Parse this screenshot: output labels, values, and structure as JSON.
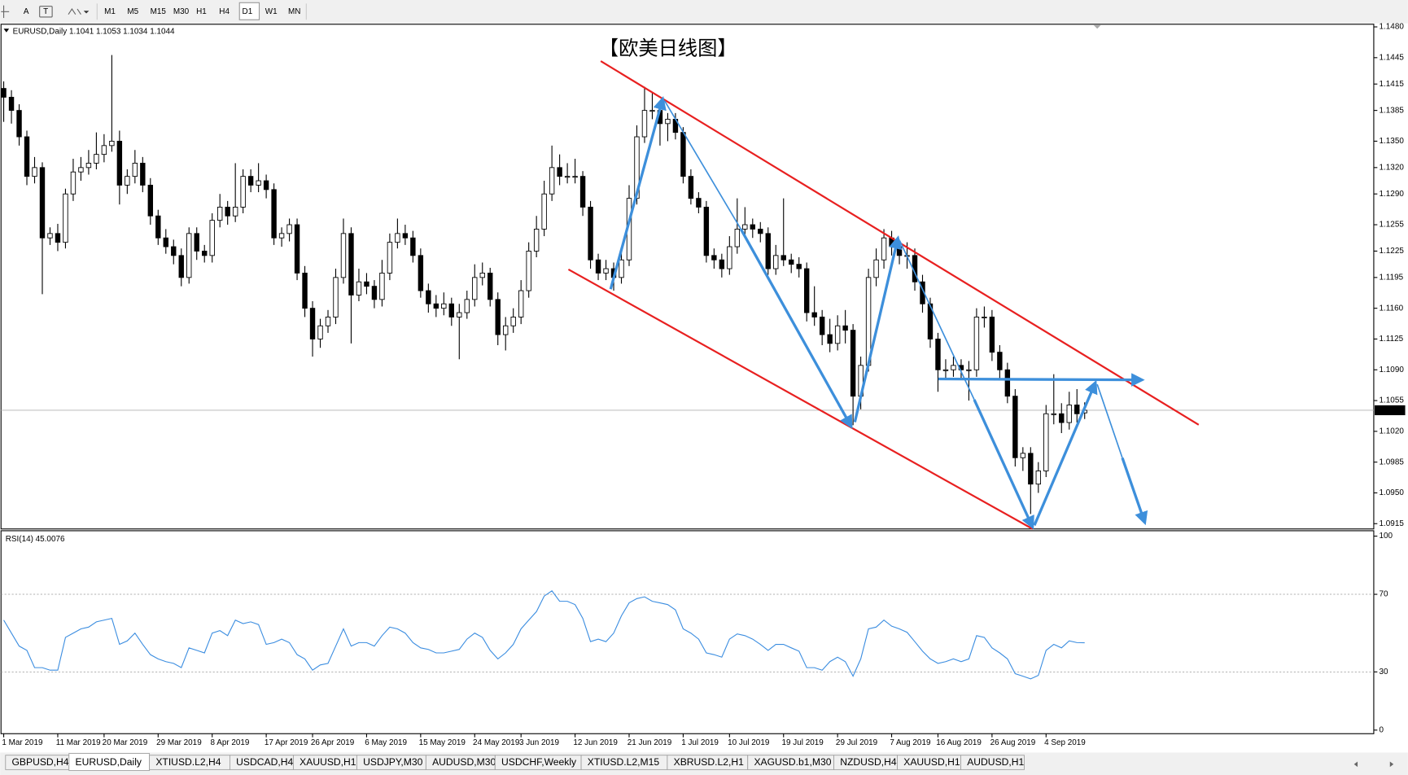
{
  "toolbar": {
    "tools": [
      "A",
      "T"
    ],
    "timeframes": [
      "M1",
      "M5",
      "M15",
      "M30",
      "H1",
      "H4",
      "D1",
      "W1",
      "MN"
    ],
    "active_timeframe": "D1"
  },
  "chart_data": {
    "type": "candlestick",
    "symbol": "EURUSD,Daily",
    "title": "【欧美日线图】",
    "title_color": "#e8211c",
    "up_color": "#ffffff",
    "down_color": "#000000",
    "line_color": "#000000",
    "ylim": [
      1.0909,
      1.1483
    ],
    "yticks": [
      {
        "value": 1.148,
        "label": "1.1480"
      },
      {
        "value": 1.1445,
        "label": "1.1445"
      },
      {
        "value": 1.1415,
        "label": "1.1415"
      },
      {
        "value": 1.1385,
        "label": "1.1385"
      },
      {
        "value": 1.135,
        "label": "1.1350"
      },
      {
        "value": 1.132,
        "label": "1.1320"
      },
      {
        "value": 1.129,
        "label": "1.1290"
      },
      {
        "value": 1.1255,
        "label": "1.1255"
      },
      {
        "value": 1.1225,
        "label": "1.1225"
      },
      {
        "value": 1.1195,
        "label": "1.1195"
      },
      {
        "value": 1.116,
        "label": "1.1160"
      },
      {
        "value": 1.1125,
        "label": "1.1125"
      },
      {
        "value": 1.109,
        "label": "1.1090"
      },
      {
        "value": 1.1055,
        "label": "1.1055"
      },
      {
        "value": 1.102,
        "label": "1.1020"
      },
      {
        "value": 1.0985,
        "label": "1.0985"
      },
      {
        "value": 1.095,
        "label": "1.0950"
      },
      {
        "value": 1.0915,
        "label": "1.0915"
      }
    ],
    "categories": [
      "1 Mar 2019",
      null,
      null,
      null,
      null,
      null,
      null,
      "11 Mar 2019",
      null,
      null,
      null,
      null,
      null,
      "20 Mar 2019",
      null,
      null,
      null,
      null,
      null,
      null,
      "29 Mar 2019",
      null,
      null,
      null,
      null,
      null,
      null,
      "8 Apr 2019",
      null,
      null,
      null,
      null,
      null,
      null,
      "17 Apr 2019",
      null,
      null,
      null,
      null,
      null,
      "26 Apr 2019",
      null,
      null,
      null,
      null,
      null,
      null,
      "6 May 2019",
      null,
      null,
      null,
      null,
      null,
      null,
      "15 May 2019",
      null,
      null,
      null,
      null,
      null,
      null,
      "24 May 2019",
      null,
      null,
      null,
      null,
      null,
      "3 Jun 2019",
      null,
      null,
      null,
      null,
      null,
      null,
      "12 Jun 2019",
      null,
      null,
      null,
      null,
      null,
      null,
      "21 Jun 2019",
      null,
      null,
      null,
      null,
      null,
      null,
      "1 Jul 2019",
      null,
      null,
      null,
      null,
      null,
      "10 Jul 2019",
      null,
      null,
      null,
      null,
      null,
      null,
      "19 Jul 2019",
      null,
      null,
      null,
      null,
      null,
      null,
      "29 Jul 2019",
      null,
      null,
      null,
      null,
      null,
      null,
      "7 Aug 2019",
      null,
      null,
      null,
      null,
      null,
      "16 Aug 2019",
      null,
      null,
      null,
      null,
      null,
      null,
      "26 Aug 2019",
      null,
      null,
      null,
      null,
      null,
      null,
      "4 Sep 2019",
      null,
      null,
      null,
      null,
      null
    ],
    "candles": [
      [
        1.141,
        1.1418,
        1.1372,
        1.14
      ],
      [
        1.14,
        1.1408,
        1.137,
        1.1385
      ],
      [
        1.1385,
        1.1392,
        1.1345,
        1.1355
      ],
      [
        1.1355,
        1.1362,
        1.13,
        1.131
      ],
      [
        1.131,
        1.1332,
        1.1302,
        1.132
      ],
      [
        1.132,
        1.1326,
        1.1176,
        1.124
      ],
      [
        1.124,
        1.1252,
        1.1232,
        1.1245
      ],
      [
        1.1245,
        1.1256,
        1.1225,
        1.1235
      ],
      [
        1.1235,
        1.1296,
        1.1228,
        1.129
      ],
      [
        1.129,
        1.133,
        1.1282,
        1.1315
      ],
      [
        1.1315,
        1.1332,
        1.1305,
        1.132
      ],
      [
        1.132,
        1.134,
        1.1312,
        1.1325
      ],
      [
        1.1325,
        1.136,
        1.1318,
        1.1335
      ],
      [
        1.1335,
        1.1358,
        1.1326,
        1.1345
      ],
      [
        1.1345,
        1.1448,
        1.1338,
        1.135
      ],
      [
        1.135,
        1.1362,
        1.1278,
        1.13
      ],
      [
        1.13,
        1.1318,
        1.129,
        1.131
      ],
      [
        1.131,
        1.134,
        1.1302,
        1.1325
      ],
      [
        1.1325,
        1.1332,
        1.1292,
        1.13
      ],
      [
        1.13,
        1.1308,
        1.1255,
        1.1265
      ],
      [
        1.1265,
        1.1272,
        1.1232,
        1.124
      ],
      [
        1.124,
        1.125,
        1.1222,
        1.123
      ],
      [
        1.123,
        1.1238,
        1.121,
        1.122
      ],
      [
        1.122,
        1.1228,
        1.1185,
        1.1195
      ],
      [
        1.1195,
        1.1252,
        1.1188,
        1.1245
      ],
      [
        1.1245,
        1.1252,
        1.1215,
        1.1225
      ],
      [
        1.1225,
        1.1232,
        1.1212,
        1.122
      ],
      [
        1.122,
        1.1268,
        1.1212,
        1.126
      ],
      [
        1.126,
        1.129,
        1.1252,
        1.1275
      ],
      [
        1.1275,
        1.1282,
        1.1255,
        1.1265
      ],
      [
        1.1265,
        1.1325,
        1.1258,
        1.1275
      ],
      [
        1.1275,
        1.1318,
        1.1268,
        1.131
      ],
      [
        1.131,
        1.1318,
        1.1292,
        1.13
      ],
      [
        1.13,
        1.1325,
        1.1292,
        1.1305
      ],
      [
        1.1305,
        1.1312,
        1.1285,
        1.1295
      ],
      [
        1.1295,
        1.1302,
        1.1232,
        1.124
      ],
      [
        1.124,
        1.1252,
        1.123,
        1.1245
      ],
      [
        1.1245,
        1.1262,
        1.1236,
        1.1255
      ],
      [
        1.1255,
        1.1262,
        1.1192,
        1.12
      ],
      [
        1.12,
        1.1208,
        1.115,
        1.116
      ],
      [
        1.116,
        1.1168,
        1.1105,
        1.1125
      ],
      [
        1.1125,
        1.1148,
        1.1115,
        1.114
      ],
      [
        1.114,
        1.1158,
        1.1132,
        1.115
      ],
      [
        1.115,
        1.1205,
        1.1142,
        1.1195
      ],
      [
        1.1195,
        1.1262,
        1.1188,
        1.1245
      ],
      [
        1.1245,
        1.1252,
        1.112,
        1.1175
      ],
      [
        1.1175,
        1.1205,
        1.1168,
        1.119
      ],
      [
        1.119,
        1.12,
        1.1176,
        1.1185
      ],
      [
        1.1185,
        1.1192,
        1.116,
        1.117
      ],
      [
        1.117,
        1.1215,
        1.1162,
        1.12
      ],
      [
        1.12,
        1.1245,
        1.1192,
        1.1235
      ],
      [
        1.1235,
        1.1262,
        1.1228,
        1.1245
      ],
      [
        1.1245,
        1.1255,
        1.1232,
        1.124
      ],
      [
        1.124,
        1.1248,
        1.1212,
        1.122
      ],
      [
        1.122,
        1.1228,
        1.1172,
        1.118
      ],
      [
        1.118,
        1.1188,
        1.1155,
        1.1165
      ],
      [
        1.1165,
        1.1175,
        1.115,
        1.116
      ],
      [
        1.116,
        1.1178,
        1.1152,
        1.1165
      ],
      [
        1.1165,
        1.1172,
        1.114,
        1.115
      ],
      [
        1.115,
        1.1165,
        1.1102,
        1.1155
      ],
      [
        1.1155,
        1.118,
        1.1148,
        1.117
      ],
      [
        1.117,
        1.121,
        1.1162,
        1.1195
      ],
      [
        1.1195,
        1.1212,
        1.1186,
        1.12
      ],
      [
        1.12,
        1.1206,
        1.1162,
        1.117
      ],
      [
        1.117,
        1.1178,
        1.1118,
        1.113
      ],
      [
        1.113,
        1.115,
        1.1112,
        1.114
      ],
      [
        1.114,
        1.116,
        1.1132,
        1.115
      ],
      [
        1.115,
        1.1192,
        1.1142,
        1.118
      ],
      [
        1.118,
        1.1235,
        1.1172,
        1.1225
      ],
      [
        1.1225,
        1.1265,
        1.1218,
        1.125
      ],
      [
        1.125,
        1.1305,
        1.1242,
        1.129
      ],
      [
        1.129,
        1.1345,
        1.1282,
        1.132
      ],
      [
        1.132,
        1.1335,
        1.13,
        1.131
      ],
      [
        1.131,
        1.1325,
        1.1302,
        1.131
      ],
      [
        1.131,
        1.133,
        1.1302,
        1.131
      ],
      [
        1.131,
        1.1316,
        1.1265,
        1.1275
      ],
      [
        1.1275,
        1.1282,
        1.1205,
        1.1215
      ],
      [
        1.1215,
        1.1222,
        1.1192,
        1.12
      ],
      [
        1.12,
        1.1215,
        1.1192,
        1.1205
      ],
      [
        1.1205,
        1.1212,
        1.118,
        1.1195
      ],
      [
        1.1195,
        1.1225,
        1.1188,
        1.1215
      ],
      [
        1.1215,
        1.13,
        1.1208,
        1.1285
      ],
      [
        1.1285,
        1.1368,
        1.1278,
        1.1355
      ],
      [
        1.1355,
        1.1412,
        1.1348,
        1.1385
      ],
      [
        1.1385,
        1.1405,
        1.1375,
        1.1385
      ],
      [
        1.1385,
        1.1392,
        1.1345,
        1.137
      ],
      [
        1.137,
        1.1382,
        1.135,
        1.1375
      ],
      [
        1.1375,
        1.1382,
        1.1352,
        1.136
      ],
      [
        1.136,
        1.1366,
        1.1302,
        1.131
      ],
      [
        1.131,
        1.1318,
        1.1278,
        1.1285
      ],
      [
        1.1285,
        1.1292,
        1.1268,
        1.1275
      ],
      [
        1.1275,
        1.1282,
        1.1212,
        1.122
      ],
      [
        1.122,
        1.1228,
        1.1205,
        1.1215
      ],
      [
        1.1215,
        1.1222,
        1.1195,
        1.1205
      ],
      [
        1.1205,
        1.1242,
        1.1198,
        1.123
      ],
      [
        1.123,
        1.1285,
        1.1222,
        1.125
      ],
      [
        1.125,
        1.1275,
        1.1242,
        1.1255
      ],
      [
        1.1255,
        1.1262,
        1.124,
        1.125
      ],
      [
        1.125,
        1.1258,
        1.1235,
        1.1245
      ],
      [
        1.1245,
        1.1252,
        1.1198,
        1.1205
      ],
      [
        1.1205,
        1.1232,
        1.1198,
        1.122
      ],
      [
        1.122,
        1.1285,
        1.1208,
        1.1215
      ],
      [
        1.1215,
        1.1222,
        1.12,
        1.121
      ],
      [
        1.121,
        1.1218,
        1.1195,
        1.1205
      ],
      [
        1.1205,
        1.1212,
        1.1145,
        1.1155
      ],
      [
        1.1155,
        1.1185,
        1.114,
        1.115
      ],
      [
        1.115,
        1.1158,
        1.1118,
        1.113
      ],
      [
        1.113,
        1.1148,
        1.111,
        1.112
      ],
      [
        1.112,
        1.1152,
        1.1112,
        1.114
      ],
      [
        1.114,
        1.1158,
        1.112,
        1.1135
      ],
      [
        1.1135,
        1.1142,
        1.1027,
        1.106
      ],
      [
        1.106,
        1.1105,
        1.1045,
        1.1095
      ],
      [
        1.1095,
        1.1205,
        1.1088,
        1.1195
      ],
      [
        1.1195,
        1.1228,
        1.1185,
        1.1215
      ],
      [
        1.1215,
        1.125,
        1.1205,
        1.124
      ],
      [
        1.124,
        1.1248,
        1.122,
        1.123
      ],
      [
        1.123,
        1.1238,
        1.121,
        1.122
      ],
      [
        1.122,
        1.1235,
        1.1205,
        1.122
      ],
      [
        1.122,
        1.1228,
        1.118,
        1.119
      ],
      [
        1.119,
        1.1198,
        1.1155,
        1.1165
      ],
      [
        1.1165,
        1.1172,
        1.1115,
        1.1125
      ],
      [
        1.1125,
        1.1132,
        1.1065,
        1.109
      ],
      [
        1.109,
        1.1102,
        1.108,
        1.109
      ],
      [
        1.109,
        1.1105,
        1.1082,
        1.1095
      ],
      [
        1.1095,
        1.1102,
        1.108,
        1.109
      ],
      [
        1.109,
        1.11,
        1.1055,
        1.109
      ],
      [
        1.109,
        1.116,
        1.1082,
        1.115
      ],
      [
        1.115,
        1.1162,
        1.1138,
        1.115
      ],
      [
        1.115,
        1.1158,
        1.11,
        1.111
      ],
      [
        1.111,
        1.1118,
        1.108,
        1.109
      ],
      [
        1.109,
        1.1098,
        1.1052,
        1.106
      ],
      [
        1.106,
        1.1068,
        1.098,
        1.099
      ],
      [
        1.099,
        1.1002,
        1.0975,
        1.0995
      ],
      [
        1.0995,
        1.1002,
        1.0926,
        1.096
      ],
      [
        1.096,
        1.0985,
        1.095,
        1.0975
      ],
      [
        1.0975,
        1.105,
        1.0968,
        1.104
      ],
      [
        1.104,
        1.1085,
        1.1028,
        1.104
      ],
      [
        1.104,
        1.1052,
        1.1018,
        1.103
      ],
      [
        1.103,
        1.1065,
        1.1022,
        1.105
      ],
      [
        1.105,
        1.1068,
        1.103,
        1.104
      ],
      [
        1.1041,
        1.1053,
        1.1034,
        1.1044
      ]
    ],
    "rsi": {
      "name": "RSI(14)",
      "color": "#3b8de0",
      "ylim": [
        0,
        100
      ],
      "yticks": [
        100,
        70,
        30,
        0
      ],
      "levels": [
        70,
        30
      ],
      "values": [
        56.7,
        50,
        43.3,
        41.1,
        32.2,
        32.2,
        30.9,
        30.9,
        47.8,
        50,
        52.2,
        53.1,
        55.8,
        56.7,
        57.6,
        44.2,
        46,
        50,
        44.2,
        38.9,
        36.7,
        35.3,
        34.4,
        32.2,
        42.4,
        41.1,
        39.8,
        50,
        51.3,
        48.7,
        56.7,
        54.9,
        55.8,
        54.4,
        44.2,
        45.1,
        46.9,
        45.1,
        38.9,
        36.7,
        30.9,
        33.6,
        34.4,
        43.3,
        52.2,
        43.3,
        45.1,
        45.1,
        43.3,
        48.7,
        53.1,
        52.2,
        50,
        45.1,
        42.4,
        41.6,
        39.8,
        39.8,
        40.7,
        41.6,
        46.9,
        50,
        47.8,
        41.1,
        36.7,
        39.8,
        44.2,
        52.2,
        56.7,
        61.1,
        69.1,
        71.8,
        66.4,
        66.4,
        64.7,
        57.6,
        45.6,
        46.9,
        45.6,
        50,
        58.9,
        65.6,
        67.8,
        68.7,
        66.4,
        65.6,
        64.7,
        62,
        52.2,
        50,
        46.9,
        39.8,
        38.9,
        37.6,
        46.9,
        49.6,
        48.7,
        46.9,
        44.2,
        41.1,
        44.2,
        44.2,
        42.4,
        40.7,
        32.2,
        32.2,
        30.9,
        35.3,
        37.6,
        35.3,
        27.8,
        36.7,
        52.2,
        53.1,
        56.7,
        53.6,
        52.2,
        50.4,
        45.6,
        40.7,
        36.7,
        34.4,
        35.3,
        36.7,
        35.3,
        36.7,
        48.7,
        47.8,
        42.4,
        39.8,
        36.7,
        29.1,
        27.8,
        26.4,
        28.2,
        41.1,
        44.2,
        42.4,
        46,
        45.1,
        45.0076
      ]
    }
  },
  "tabs": [
    "GBPUSD,H4",
    "EURUSD,Daily",
    "XTIUSD.L2,H4",
    "USDCAD,H4",
    "XAUUSD,H1",
    "USDJPY,M30",
    "AUDUSD,M30",
    "USDCHF,Weekly",
    "XTIUSD.L2,M15",
    "XBRUSD.L2,H1",
    "XAGUSD.b1,M30",
    "NZDUSD,H4",
    "XAUUSD,H1",
    "AUDUSD,H1"
  ],
  "active_tab": "EURUSD,Daily"
}
